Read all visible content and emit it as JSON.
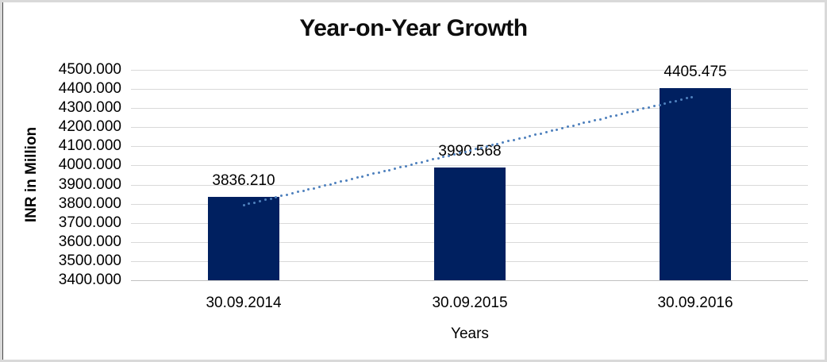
{
  "chart_data": {
    "type": "bar",
    "title": "Year-on-Year Growth",
    "xlabel": "Years",
    "ylabel": "INR in Million",
    "categories": [
      "30.09.2014",
      "30.09.2015",
      "30.09.2016"
    ],
    "values": [
      3836.21,
      3990.568,
      4405.475
    ],
    "value_labels": [
      "3836.210",
      "3990.568",
      "4405.475"
    ],
    "ylim": [
      3400,
      4500
    ],
    "ytick_step": 100,
    "ytick_labels": [
      "3400.000",
      "3500.000",
      "3600.000",
      "3700.000",
      "3800.000",
      "3900.000",
      "4000.000",
      "4100.000",
      "4200.000",
      "4300.000",
      "4400.000",
      "4500.000"
    ],
    "grid": true,
    "legend": "none",
    "trendline": {
      "type": "linear",
      "style": "dotted"
    },
    "colors": {
      "bar": "#002060",
      "gridline": "#d9d9d9",
      "axis_line": "#c0c0c0",
      "trendline": "#4f81bd",
      "text": "#000000",
      "frame_border": "#d9d9d9"
    }
  }
}
